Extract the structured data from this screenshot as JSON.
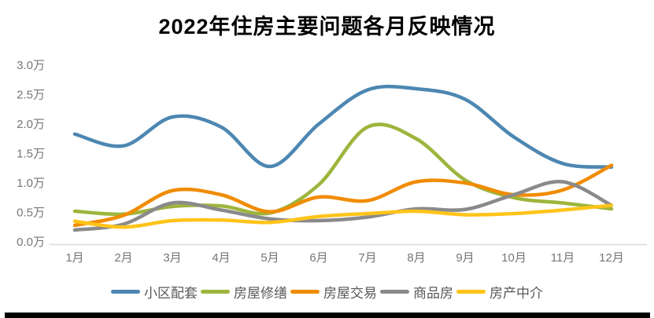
{
  "chart_data": {
    "type": "line",
    "title": "2022年住房主要问题各月反映情况",
    "categories": [
      "1月",
      "2月",
      "3月",
      "4月",
      "5月",
      "6月",
      "7月",
      "8月",
      "9月",
      "10月",
      "11月",
      "12月"
    ],
    "y_tick_labels": [
      "0.0万",
      "0.5万",
      "1.0万",
      "1.5万",
      "2.0万",
      "2.5万",
      "3.0万"
    ],
    "ylim": [
      0.0,
      3.0
    ],
    "y_unit": "万",
    "grid": false,
    "smooth_lines": true,
    "legend_position": "bottom",
    "axis_color": "#d9d9d9",
    "tick_text_color": "#767676",
    "legend_text_color": "#595959",
    "series": [
      {
        "name": "小区配套",
        "color": "#4d87b2",
        "values": [
          1.83,
          1.63,
          2.12,
          1.95,
          1.28,
          2.0,
          2.58,
          2.6,
          2.42,
          1.78,
          1.33,
          1.27
        ]
      },
      {
        "name": "房屋修缮",
        "color": "#9db53c",
        "values": [
          0.52,
          0.47,
          0.6,
          0.61,
          0.49,
          0.97,
          1.95,
          1.75,
          1.05,
          0.75,
          0.66,
          0.56
        ]
      },
      {
        "name": "房屋交易",
        "color": "#f08c00",
        "values": [
          0.28,
          0.45,
          0.87,
          0.8,
          0.51,
          0.76,
          0.7,
          1.02,
          1.0,
          0.8,
          0.88,
          1.3
        ]
      },
      {
        "name": "商品房",
        "color": "#8a8a8a",
        "values": [
          0.2,
          0.3,
          0.66,
          0.54,
          0.39,
          0.36,
          0.42,
          0.56,
          0.55,
          0.8,
          1.02,
          0.62
        ]
      },
      {
        "name": "房产中介",
        "color": "#ffc41a",
        "values": [
          0.35,
          0.25,
          0.36,
          0.37,
          0.33,
          0.43,
          0.48,
          0.52,
          0.46,
          0.48,
          0.54,
          0.62
        ]
      }
    ]
  }
}
